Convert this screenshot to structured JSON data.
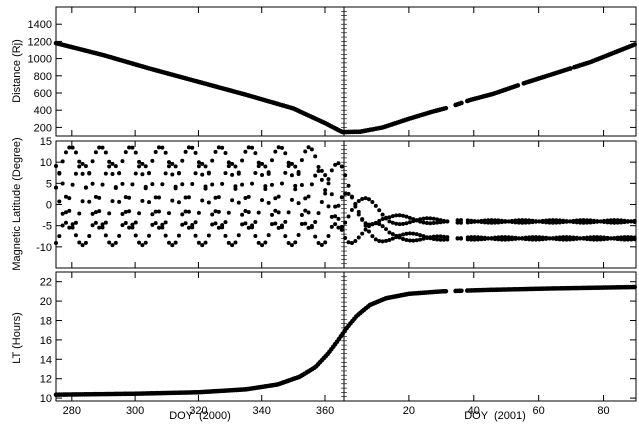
{
  "chart_data": [
    {
      "type": "scatter",
      "xlabel": "",
      "ylabel": "Distance (Rj)",
      "x_axis": "DOY",
      "ylim": [
        100,
        1600
      ],
      "yticks": [
        200,
        400,
        600,
        800,
        1000,
        1200,
        1400
      ],
      "series": [
        {
          "x": [
            275,
            290,
            305,
            320,
            335,
            350,
            360,
            365.5,
            371,
            378,
            386,
            393,
            398,
            405,
            412,
            422,
            432,
            442,
            456
          ],
          "y": [
            1180,
            1040,
            880,
            730,
            580,
            420,
            250,
            145,
            150,
            200,
            300,
            380,
            430,
            520,
            590,
            720,
            840,
            960,
            1170
          ]
        }
      ],
      "gaps": [
        [
          398,
          400
        ],
        [
          402.5,
          404
        ],
        [
          420,
          421
        ],
        [
          436,
          437
        ]
      ]
    },
    {
      "type": "scatter",
      "xlabel": "",
      "ylabel": "Magnetic Latitude (Degree)",
      "x_axis": "DOY",
      "ylim": [
        -15,
        15
      ],
      "yticks": [
        -10,
        -5,
        0,
        5,
        10,
        15
      ],
      "envelope": {
        "x": [
          275,
          355,
          365,
          371,
          380,
          398,
          404,
          456
        ],
        "amplitude": [
          9.6,
          9.6,
          7.5,
          3.8,
          1.2,
          0.3,
          0.3,
          0.3
        ],
        "center": [
          4,
          4,
          2,
          -1,
          -3.5,
          -4,
          -4,
          -4
        ]
      },
      "gaps": [
        [
          398,
          400
        ],
        [
          402.5,
          404
        ]
      ]
    },
    {
      "type": "scatter",
      "xlabel": "DOY  (2000)",
      "xlabel_right": "DOY  (2001)",
      "ylabel": "LT (Hours)",
      "x_axis": "DOY",
      "ylim": [
        9.7,
        23
      ],
      "yticks": [
        10,
        12,
        14,
        16,
        18,
        20,
        22
      ],
      "series": [
        {
          "x": [
            275,
            300,
            320,
            335,
            345,
            352,
            357,
            361,
            364,
            367,
            370,
            374,
            379,
            386,
            396,
            410,
            430,
            456
          ],
          "y": [
            10.35,
            10.45,
            10.6,
            10.9,
            11.4,
            12.2,
            13.2,
            14.6,
            15.9,
            17.3,
            18.5,
            19.6,
            20.3,
            20.75,
            21.0,
            21.15,
            21.3,
            21.45
          ]
        }
      ],
      "gaps": [
        [
          398,
          400
        ],
        [
          402.5,
          404
        ]
      ]
    }
  ],
  "x_axis": {
    "domain": [
      275,
      456
    ],
    "year_boundary": 366,
    "ticks_2000": [
      "280",
      "300",
      "320",
      "340",
      "360"
    ],
    "ticks_2001": [
      "20",
      "40",
      "60",
      "80"
    ]
  }
}
